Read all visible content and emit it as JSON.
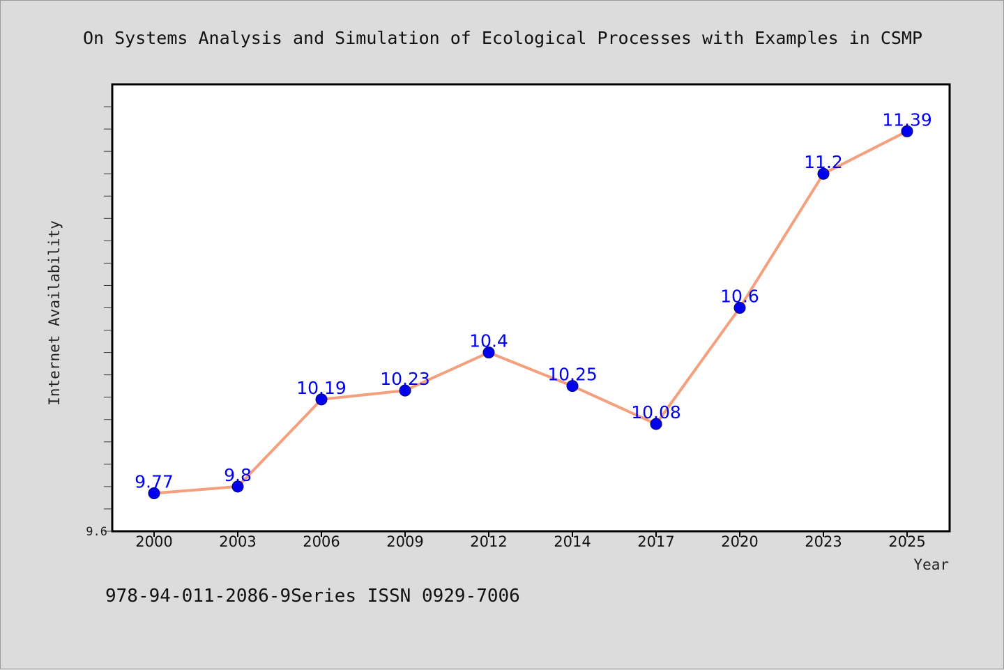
{
  "chart_data": {
    "type": "line",
    "title": "On Systems Analysis and Simulation of Ecological Processes with Examples in CSMP",
    "xlabel": "Year",
    "ylabel": "Internet Availability",
    "categories": [
      "2000",
      "2003",
      "2006",
      "2009",
      "2012",
      "2014",
      "2017",
      "2020",
      "2023",
      "2025"
    ],
    "series": [
      {
        "values": [
          9.77,
          9.8,
          10.19,
          10.23,
          10.4,
          10.25,
          10.08,
          10.6,
          11.2,
          11.39
        ],
        "data_labels": [
          "9.77",
          "9.8",
          "10.19",
          "10.23",
          "10.4",
          "10.25",
          "10.08",
          "10.6",
          "11.2",
          "11.39"
        ]
      }
    ],
    "ylim": [
      9.6,
      11.6
    ],
    "y_tick_labels": [
      "9.6"
    ],
    "grid": false,
    "legend": "none",
    "footer": "978-94-011-2086-9Series ISSN 0929-7006",
    "colors": {
      "background": "#dcdcdc",
      "plot_background": "#ffffff",
      "line": "#f4a07e",
      "marker": "#0000ee",
      "data_label": "#0000ee"
    }
  }
}
